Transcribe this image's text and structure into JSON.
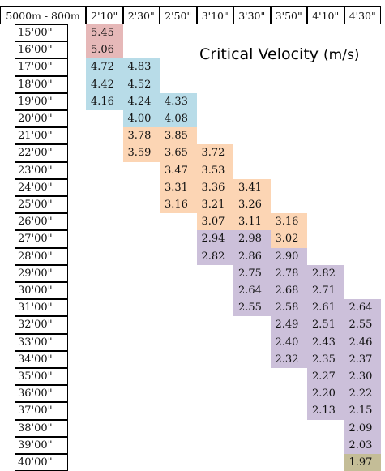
{
  "chart_data": {
    "type": "table",
    "title": "Critical Velocity",
    "unit": "(m/s)",
    "corner_label": "5000m - 800m",
    "columns": [
      "2'10\"",
      "2'30\"",
      "2'50\"",
      "3'10\"",
      "3'30\"",
      "3'50\"",
      "4'10\"",
      "4'30\""
    ],
    "rows": [
      "15'00\"",
      "16'00\"",
      "17'00\"",
      "18'00\"",
      "19'00\"",
      "20'00\"",
      "21'00\"",
      "22'00\"",
      "23'00\"",
      "24'00\"",
      "25'00\"",
      "26'00\"",
      "27'00\"",
      "28'00\"",
      "29'00\"",
      "30'00\"",
      "31'00\"",
      "32'00\"",
      "33'00\"",
      "34'00\"",
      "35'00\"",
      "36'00\"",
      "37'00\"",
      "38'00\"",
      "39'00\"",
      "40'00\""
    ],
    "colors": {
      "pink": "#e6b8b8",
      "blue": "#b8dce8",
      "orange": "#fcd5b4",
      "purple": "#ccc0da",
      "olive": "#c4bd97"
    },
    "values": [
      [
        "5.45",
        null,
        null,
        null,
        null,
        null,
        null,
        null
      ],
      [
        "5.06",
        null,
        null,
        null,
        null,
        null,
        null,
        null
      ],
      [
        "4.72",
        "4.83",
        null,
        null,
        null,
        null,
        null,
        null
      ],
      [
        "4.42",
        "4.52",
        null,
        null,
        null,
        null,
        null,
        null
      ],
      [
        "4.16",
        "4.24",
        "4.33",
        null,
        null,
        null,
        null,
        null
      ],
      [
        null,
        "4.00",
        "4.08",
        null,
        null,
        null,
        null,
        null
      ],
      [
        null,
        "3.78",
        "3.85",
        null,
        null,
        null,
        null,
        null
      ],
      [
        null,
        "3.59",
        "3.65",
        "3.72",
        null,
        null,
        null,
        null
      ],
      [
        null,
        null,
        "3.47",
        "3.53",
        null,
        null,
        null,
        null
      ],
      [
        null,
        null,
        "3.31",
        "3.36",
        "3.41",
        null,
        null,
        null
      ],
      [
        null,
        null,
        "3.16",
        "3.21",
        "3.26",
        null,
        null,
        null
      ],
      [
        null,
        null,
        null,
        "3.07",
        "3.11",
        "3.16",
        null,
        null
      ],
      [
        null,
        null,
        null,
        "2.94",
        "2.98",
        "3.02",
        null,
        null
      ],
      [
        null,
        null,
        null,
        "2.82",
        "2.86",
        "2.90",
        null,
        null
      ],
      [
        null,
        null,
        null,
        null,
        "2.75",
        "2.78",
        "2.82",
        null
      ],
      [
        null,
        null,
        null,
        null,
        "2.64",
        "2.68",
        "2.71",
        null
      ],
      [
        null,
        null,
        null,
        null,
        "2.55",
        "2.58",
        "2.61",
        "2.64"
      ],
      [
        null,
        null,
        null,
        null,
        null,
        "2.49",
        "2.51",
        "2.55"
      ],
      [
        null,
        null,
        null,
        null,
        null,
        "2.40",
        "2.43",
        "2.46"
      ],
      [
        null,
        null,
        null,
        null,
        null,
        "2.32",
        "2.35",
        "2.37"
      ],
      [
        null,
        null,
        null,
        null,
        null,
        null,
        "2.27",
        "2.30"
      ],
      [
        null,
        null,
        null,
        null,
        null,
        null,
        "2.20",
        "2.22"
      ],
      [
        null,
        null,
        null,
        null,
        null,
        null,
        "2.13",
        "2.15"
      ],
      [
        null,
        null,
        null,
        null,
        null,
        null,
        null,
        "2.09"
      ],
      [
        null,
        null,
        null,
        null,
        null,
        null,
        null,
        "2.03"
      ],
      [
        null,
        null,
        null,
        null,
        null,
        null,
        null,
        "1.97"
      ]
    ],
    "cell_colors": [
      [
        "pink",
        null,
        null,
        null,
        null,
        null,
        null,
        null
      ],
      [
        "pink",
        null,
        null,
        null,
        null,
        null,
        null,
        null
      ],
      [
        "blue",
        "blue",
        null,
        null,
        null,
        null,
        null,
        null
      ],
      [
        "blue",
        "blue",
        null,
        null,
        null,
        null,
        null,
        null
      ],
      [
        "blue",
        "blue",
        "blue",
        null,
        null,
        null,
        null,
        null
      ],
      [
        null,
        "blue",
        "blue",
        null,
        null,
        null,
        null,
        null
      ],
      [
        null,
        "orange",
        "orange",
        null,
        null,
        null,
        null,
        null
      ],
      [
        null,
        "orange",
        "orange",
        "orange",
        null,
        null,
        null,
        null
      ],
      [
        null,
        null,
        "orange",
        "orange",
        null,
        null,
        null,
        null
      ],
      [
        null,
        null,
        "orange",
        "orange",
        "orange",
        null,
        null,
        null
      ],
      [
        null,
        null,
        "orange",
        "orange",
        "orange",
        null,
        null,
        null
      ],
      [
        null,
        null,
        null,
        "orange",
        "orange",
        "orange",
        null,
        null
      ],
      [
        null,
        null,
        null,
        "purple",
        "purple",
        "orange",
        null,
        null
      ],
      [
        null,
        null,
        null,
        "purple",
        "purple",
        "purple",
        null,
        null
      ],
      [
        null,
        null,
        null,
        null,
        "purple",
        "purple",
        "purple",
        null
      ],
      [
        null,
        null,
        null,
        null,
        "purple",
        "purple",
        "purple",
        null
      ],
      [
        null,
        null,
        null,
        null,
        "purple",
        "purple",
        "purple",
        "purple"
      ],
      [
        null,
        null,
        null,
        null,
        null,
        "purple",
        "purple",
        "purple"
      ],
      [
        null,
        null,
        null,
        null,
        null,
        "purple",
        "purple",
        "purple"
      ],
      [
        null,
        null,
        null,
        null,
        null,
        "purple",
        "purple",
        "purple"
      ],
      [
        null,
        null,
        null,
        null,
        null,
        null,
        "purple",
        "purple"
      ],
      [
        null,
        null,
        null,
        null,
        null,
        null,
        "purple",
        "purple"
      ],
      [
        null,
        null,
        null,
        null,
        null,
        null,
        "purple",
        "purple"
      ],
      [
        null,
        null,
        null,
        null,
        null,
        null,
        null,
        "purple"
      ],
      [
        null,
        null,
        null,
        null,
        null,
        null,
        null,
        "purple"
      ],
      [
        null,
        null,
        null,
        null,
        null,
        null,
        null,
        "olive"
      ]
    ]
  }
}
